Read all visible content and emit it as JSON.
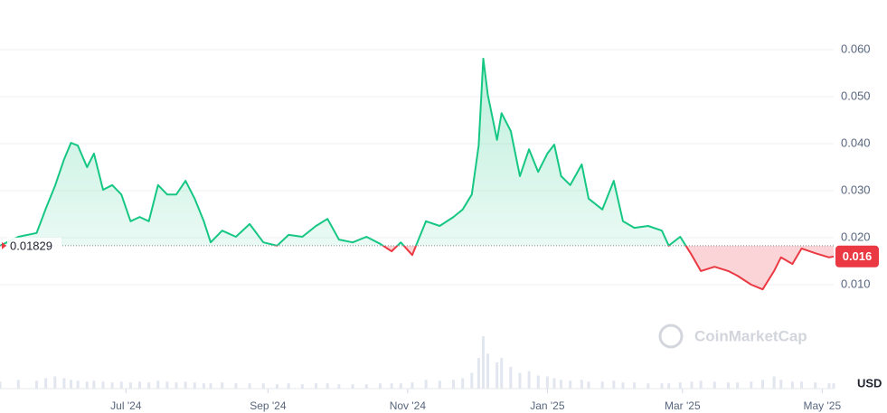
{
  "chart_data": {
    "type": "line",
    "x": [
      0,
      8,
      16,
      20,
      24,
      28,
      31,
      34,
      38,
      41,
      45,
      49,
      53,
      57,
      61,
      65,
      69,
      73,
      77,
      81,
      85,
      89,
      92,
      97,
      103,
      109,
      115,
      121,
      126,
      132,
      138,
      143,
      148,
      154,
      160,
      166,
      171,
      175,
      180,
      186,
      192,
      198,
      202,
      206,
      209,
      211,
      213,
      217,
      219,
      223,
      227,
      231,
      235,
      239,
      242,
      245,
      249,
      254,
      257,
      263,
      268,
      272,
      277,
      283,
      289,
      292,
      297,
      302,
      306,
      312,
      318,
      322,
      328,
      333,
      338,
      341,
      346,
      350,
      356,
      362,
      364
    ],
    "values": [
      0.0183,
      0.0202,
      0.021,
      0.0262,
      0.031,
      0.0367,
      0.0402,
      0.0396,
      0.035,
      0.0379,
      0.0302,
      0.0312,
      0.0292,
      0.0235,
      0.0244,
      0.0235,
      0.0312,
      0.0292,
      0.0292,
      0.0321,
      0.0283,
      0.0235,
      0.019,
      0.0215,
      0.0202,
      0.0229,
      0.019,
      0.0183,
      0.0206,
      0.0202,
      0.0225,
      0.024,
      0.0196,
      0.019,
      0.0202,
      0.0187,
      0.0171,
      0.019,
      0.0163,
      0.0235,
      0.0225,
      0.0244,
      0.026,
      0.0292,
      0.0396,
      0.0581,
      0.0504,
      0.0408,
      0.0465,
      0.0427,
      0.0331,
      0.0388,
      0.034,
      0.0379,
      0.0398,
      0.0331,
      0.0312,
      0.0356,
      0.0283,
      0.026,
      0.0321,
      0.0235,
      0.0221,
      0.0225,
      0.0215,
      0.0183,
      0.0202,
      0.0163,
      0.0129,
      0.0138,
      0.0129,
      0.0119,
      0.01,
      0.009,
      0.0129,
      0.0158,
      0.0144,
      0.0177,
      0.0167,
      0.0158,
      0.016
    ],
    "volume": [
      8,
      10,
      9,
      12,
      14,
      12,
      10,
      9,
      8,
      9,
      8,
      7,
      8,
      7,
      8,
      7,
      9,
      8,
      7,
      8,
      7,
      6,
      6,
      7,
      6,
      6,
      6,
      5,
      6,
      5,
      6,
      6,
      5,
      5,
      5,
      6,
      6,
      6,
      7,
      10,
      9,
      10,
      12,
      18,
      35,
      60,
      40,
      30,
      35,
      25,
      18,
      20,
      15,
      14,
      12,
      10,
      9,
      10,
      8,
      8,
      9,
      7,
      7,
      6,
      6,
      6,
      7,
      8,
      9,
      8,
      7,
      7,
      8,
      10,
      14,
      10,
      8,
      8,
      7,
      6,
      6
    ],
    "xlim": [
      0,
      364
    ],
    "xticks": [
      {
        "value": 55,
        "label": "Jul '24"
      },
      {
        "value": 117,
        "label": "Sep '24"
      },
      {
        "value": 178,
        "label": "Nov '24"
      },
      {
        "value": 239,
        "label": "Jan '25"
      },
      {
        "value": 298,
        "label": "Mar '25"
      },
      {
        "value": 359,
        "label": "May '25"
      }
    ],
    "ylim": [
      0,
      0.07
    ],
    "yticks": [
      {
        "value": 0.01,
        "label": "0.010"
      },
      {
        "value": 0.02,
        "label": "0.020"
      },
      {
        "value": 0.03,
        "label": "0.030"
      },
      {
        "value": 0.04,
        "label": "0.040"
      },
      {
        "value": 0.05,
        "label": "0.050"
      },
      {
        "value": 0.06,
        "label": "0.060"
      }
    ],
    "baseline": 0.01829,
    "last_price": 0.016,
    "currency": "USD",
    "watermark": "CoinMarketCap",
    "up_color": "#16c784",
    "down_color": "#ea3943",
    "grid": true
  }
}
